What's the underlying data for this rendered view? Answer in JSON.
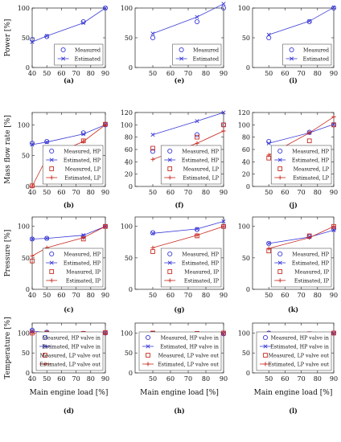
{
  "figure": {
    "row_ylabels": [
      "Power [%]",
      "Mass flow rate [%]",
      "Pressure [%]",
      "Temperature [%]"
    ],
    "xlabel": "Main engine load [%]",
    "colors": {
      "blue": "#3a3ad6",
      "red": "#c8281e"
    }
  },
  "chart_data": [
    {
      "type": "scatter",
      "panel": "a",
      "row": 0,
      "col": 0,
      "xlabel": "",
      "ylabel": "Power [%]",
      "xlim": [
        40,
        90
      ],
      "ylim": [
        0,
        100
      ],
      "xticks": [
        40,
        50,
        60,
        70,
        80,
        90
      ],
      "yticks": [
        0,
        50,
        100
      ],
      "series": [
        {
          "name": "Measured",
          "kind": "measured",
          "color": "blue",
          "x": [
            40,
            50,
            75,
            90
          ],
          "y": [
            47,
            52,
            77,
            100
          ]
        },
        {
          "name": "Estimated",
          "kind": "estimated",
          "color": "blue",
          "x": [
            40,
            50,
            75,
            90
          ],
          "y": [
            43,
            53,
            75,
            100
          ]
        }
      ]
    },
    {
      "type": "scatter",
      "panel": "e",
      "row": 0,
      "col": 1,
      "xlabel": "",
      "ylabel": "",
      "xlim": [
        40,
        90
      ],
      "ylim": [
        0,
        100
      ],
      "xticks": [
        50,
        60,
        70,
        80,
        90
      ],
      "yticks": [
        0,
        50,
        100
      ],
      "series": [
        {
          "name": "Measured",
          "kind": "measured",
          "color": "blue",
          "x": [
            50,
            75,
            90
          ],
          "y": [
            50,
            77,
            100
          ]
        },
        {
          "name": "Estimated",
          "kind": "estimated",
          "color": "blue",
          "x": [
            50,
            75,
            90
          ],
          "y": [
            57,
            85,
            107
          ]
        }
      ]
    },
    {
      "type": "scatter",
      "panel": "i",
      "row": 0,
      "col": 2,
      "xlabel": "",
      "ylabel": "",
      "xlim": [
        40,
        90
      ],
      "ylim": [
        0,
        100
      ],
      "xticks": [
        50,
        60,
        70,
        80,
        90
      ],
      "yticks": [
        0,
        50,
        100
      ],
      "series": [
        {
          "name": "Measured",
          "kind": "measured",
          "color": "blue",
          "x": [
            50,
            75,
            90
          ],
          "y": [
            50,
            77,
            100
          ]
        },
        {
          "name": "Estimated",
          "kind": "estimated",
          "color": "blue",
          "x": [
            50,
            75,
            90
          ],
          "y": [
            55,
            78,
            101
          ]
        }
      ]
    },
    {
      "type": "scatter",
      "panel": "b",
      "row": 1,
      "col": 0,
      "xlabel": "",
      "ylabel": "Mass flow rate [%]",
      "xlim": [
        40,
        90
      ],
      "ylim": [
        0,
        120
      ],
      "xticks": [
        40,
        50,
        60,
        70,
        80,
        90
      ],
      "yticks": [
        0,
        50,
        100
      ],
      "series": [
        {
          "name": "Measured, HP",
          "kind": "measured",
          "color": "blue",
          "x": [
            40,
            50,
            75,
            90
          ],
          "y": [
            70,
            73,
            87,
            100
          ]
        },
        {
          "name": "Estimated, HP",
          "kind": "estimated",
          "color": "blue",
          "x": [
            40,
            50,
            75,
            90
          ],
          "y": [
            68,
            72,
            85,
            100
          ]
        },
        {
          "name": "Measured, LP",
          "kind": "measured-sq",
          "color": "red",
          "x": [
            40,
            50,
            75,
            90
          ],
          "y": [
            1,
            55,
            74,
            101
          ]
        },
        {
          "name": "Estimated, LP",
          "kind": "estimated-plus",
          "color": "red",
          "x": [
            40,
            50,
            75,
            90
          ],
          "y": [
            0,
            47,
            73,
            100
          ]
        }
      ]
    },
    {
      "type": "scatter",
      "panel": "f",
      "row": 1,
      "col": 1,
      "xlabel": "",
      "ylabel": "",
      "xlim": [
        40,
        90
      ],
      "ylim": [
        0,
        120
      ],
      "xticks": [
        50,
        60,
        70,
        80,
        90
      ],
      "yticks": [
        0,
        20,
        40,
        60,
        80,
        100,
        120
      ],
      "series": [
        {
          "name": "Measured, HP",
          "kind": "measured",
          "color": "blue",
          "x": [
            50,
            75,
            90
          ],
          "y": [
            57,
            84,
            100
          ]
        },
        {
          "name": "Estimated, HP",
          "kind": "estimated",
          "color": "blue",
          "x": [
            50,
            75,
            90
          ],
          "y": [
            84,
            106,
            120
          ]
        },
        {
          "name": "Measured, LP",
          "kind": "measured-sq",
          "color": "red",
          "x": [
            50,
            75,
            90
          ],
          "y": [
            62,
            80,
            100
          ]
        },
        {
          "name": "Estimated, LP",
          "kind": "estimated-plus",
          "color": "red",
          "x": [
            50,
            75,
            90
          ],
          "y": [
            44,
            70,
            90
          ]
        }
      ]
    },
    {
      "type": "scatter",
      "panel": "j",
      "row": 1,
      "col": 2,
      "xlabel": "",
      "ylabel": "",
      "xlim": [
        40,
        90
      ],
      "ylim": [
        0,
        120
      ],
      "xticks": [
        50,
        60,
        70,
        80,
        90
      ],
      "yticks": [
        0,
        20,
        40,
        60,
        80,
        100,
        120
      ],
      "series": [
        {
          "name": "Measured, HP",
          "kind": "measured",
          "color": "blue",
          "x": [
            50,
            75,
            90
          ],
          "y": [
            73,
            88,
            100
          ]
        },
        {
          "name": "Estimated, HP",
          "kind": "estimated",
          "color": "blue",
          "x": [
            50,
            75,
            90
          ],
          "y": [
            70,
            87,
            101
          ]
        },
        {
          "name": "Measured, LP",
          "kind": "measured-sq",
          "color": "red",
          "x": [
            50,
            75,
            90
          ],
          "y": [
            46,
            74,
            100
          ]
        },
        {
          "name": "Estimated, LP",
          "kind": "estimated-plus",
          "color": "red",
          "x": [
            50,
            75,
            90
          ],
          "y": [
            51,
            87,
            113
          ]
        }
      ]
    },
    {
      "type": "scatter",
      "panel": "c",
      "row": 2,
      "col": 0,
      "xlabel": "",
      "ylabel": "Pressure [%]",
      "xlim": [
        40,
        90
      ],
      "ylim": [
        0,
        115
      ],
      "xticks": [
        40,
        50,
        60,
        70,
        80,
        90
      ],
      "yticks": [
        0,
        50,
        100
      ],
      "series": [
        {
          "name": "Measured, HP",
          "kind": "measured",
          "color": "blue",
          "x": [
            40,
            50,
            75,
            90
          ],
          "y": [
            80,
            81,
            84,
            100
          ]
        },
        {
          "name": "Estimated, HP",
          "kind": "estimated",
          "color": "blue",
          "x": [
            40,
            50,
            75,
            90
          ],
          "y": [
            80,
            81,
            86,
            100
          ]
        },
        {
          "name": "Measured, IP",
          "kind": "measured-sq",
          "color": "red",
          "x": [
            40,
            50,
            75,
            90
          ],
          "y": [
            45,
            58,
            80,
            100
          ]
        },
        {
          "name": "Estimated, IP",
          "kind": "estimated-plus",
          "color": "red",
          "x": [
            40,
            50,
            75,
            90
          ],
          "y": [
            53,
            66,
            82,
            100
          ]
        }
      ]
    },
    {
      "type": "scatter",
      "panel": "g",
      "row": 2,
      "col": 1,
      "xlabel": "",
      "ylabel": "",
      "xlim": [
        40,
        90
      ],
      "ylim": [
        0,
        115
      ],
      "xticks": [
        50,
        60,
        70,
        80,
        90
      ],
      "yticks": [
        0,
        50,
        100
      ],
      "series": [
        {
          "name": "Measured, HP",
          "kind": "measured",
          "color": "blue",
          "x": [
            50,
            75,
            90
          ],
          "y": [
            90,
            95,
            100
          ]
        },
        {
          "name": "Estimated, HP",
          "kind": "estimated",
          "color": "blue",
          "x": [
            50,
            75,
            90
          ],
          "y": [
            89,
            96,
            108
          ]
        },
        {
          "name": "Measured, IP",
          "kind": "measured-sq",
          "color": "red",
          "x": [
            50,
            75,
            90
          ],
          "y": [
            60,
            85,
            100
          ]
        },
        {
          "name": "Estimated, IP",
          "kind": "estimated-plus",
          "color": "red",
          "x": [
            50,
            75,
            90
          ],
          "y": [
            66,
            86,
            100
          ]
        }
      ]
    },
    {
      "type": "scatter",
      "panel": "k",
      "row": 2,
      "col": 2,
      "xlabel": "",
      "ylabel": "",
      "xlim": [
        40,
        90
      ],
      "ylim": [
        0,
        115
      ],
      "xticks": [
        50,
        60,
        70,
        80,
        90
      ],
      "yticks": [
        0,
        50,
        100
      ],
      "series": [
        {
          "name": "Measured, HP",
          "kind": "measured",
          "color": "blue",
          "x": [
            50,
            75,
            90
          ],
          "y": [
            73,
            84,
            96
          ]
        },
        {
          "name": "Estimated, HP",
          "kind": "estimated",
          "color": "blue",
          "x": [
            50,
            75,
            90
          ],
          "y": [
            73,
            83,
            94
          ]
        },
        {
          "name": "Measured, IP",
          "kind": "measured-sq",
          "color": "red",
          "x": [
            50,
            75,
            90
          ],
          "y": [
            61,
            85,
            100
          ]
        },
        {
          "name": "Estimated, IP",
          "kind": "estimated-plus",
          "color": "red",
          "x": [
            50,
            75,
            90
          ],
          "y": [
            65,
            82,
            100
          ]
        }
      ]
    },
    {
      "type": "scatter",
      "panel": "d",
      "row": 3,
      "col": 0,
      "xlabel": "Main engine load [%]",
      "ylabel": "Temperature [%]",
      "xlim": [
        40,
        90
      ],
      "ylim": [
        0,
        125
      ],
      "xticks": [
        40,
        50,
        60,
        70,
        80,
        90
      ],
      "yticks": [
        0,
        50,
        100
      ],
      "series": [
        {
          "name": "Measured, HP valve in",
          "kind": "measured",
          "color": "blue",
          "x": [
            40,
            50,
            75,
            90
          ],
          "y": [
            107,
            102,
            97,
            100
          ]
        },
        {
          "name": "Estimated, HP valve in",
          "kind": "estimated",
          "color": "blue",
          "x": [
            40,
            50,
            75,
            90
          ],
          "y": [
            105,
            101,
            98,
            100
          ]
        },
        {
          "name": "Measured, LP valve out",
          "kind": "measured-sq",
          "color": "red",
          "x": [
            40,
            50,
            75,
            90
          ],
          "y": [
            100,
            100,
            99,
            101
          ]
        },
        {
          "name": "Estimated, LP valve out",
          "kind": "estimated-plus",
          "color": "red",
          "x": [
            40,
            50,
            75,
            90
          ],
          "y": [
            100,
            100,
            100,
            100
          ]
        }
      ]
    },
    {
      "type": "scatter",
      "panel": "h",
      "row": 3,
      "col": 1,
      "xlabel": "Main engine load [%]",
      "ylabel": "",
      "xlim": [
        40,
        90
      ],
      "ylim": [
        0,
        125
      ],
      "xticks": [
        50,
        60,
        70,
        80,
        90
      ],
      "yticks": [
        0,
        50,
        100
      ],
      "series": [
        {
          "name": "Measured, HP valve in",
          "kind": "measured",
          "color": "blue",
          "x": [
            50,
            75,
            90
          ],
          "y": [
            99,
            96,
            98
          ]
        },
        {
          "name": "Estimated, HP valve in",
          "kind": "estimated",
          "color": "blue",
          "x": [
            50,
            75,
            90
          ],
          "y": [
            98,
            96,
            98
          ]
        },
        {
          "name": "Measured, LP valve out",
          "kind": "measured-sq",
          "color": "red",
          "x": [
            50,
            75,
            90
          ],
          "y": [
            100,
            99,
            100
          ]
        },
        {
          "name": "Estimated, LP valve out",
          "kind": "estimated-plus",
          "color": "red",
          "x": [
            50,
            75,
            90
          ],
          "y": [
            99,
            99,
            100
          ]
        }
      ]
    },
    {
      "type": "scatter",
      "panel": "l",
      "row": 3,
      "col": 2,
      "xlabel": "Main engine load [%]",
      "ylabel": "",
      "xlim": [
        40,
        90
      ],
      "ylim": [
        0,
        125
      ],
      "xticks": [
        50,
        60,
        70,
        80,
        90
      ],
      "yticks": [
        0,
        50,
        100
      ],
      "series": [
        {
          "name": "Measured, HP valve in",
          "kind": "measured",
          "color": "blue",
          "x": [
            50,
            75,
            90
          ],
          "y": [
            100,
            97,
            100
          ]
        },
        {
          "name": "Estimated, HP valve in",
          "kind": "estimated",
          "color": "blue",
          "x": [
            50,
            75,
            90
          ],
          "y": [
            100,
            99,
            99
          ]
        },
        {
          "name": "Measured, LP valve out",
          "kind": "measured-sq",
          "color": "red",
          "x": [
            50,
            75,
            90
          ],
          "y": [
            96,
            98,
            100
          ]
        },
        {
          "name": "Estimated, LP valve out",
          "kind": "estimated-plus",
          "color": "red",
          "x": [
            50,
            75,
            90
          ],
          "y": [
            99,
            99,
            100
          ]
        }
      ]
    }
  ]
}
